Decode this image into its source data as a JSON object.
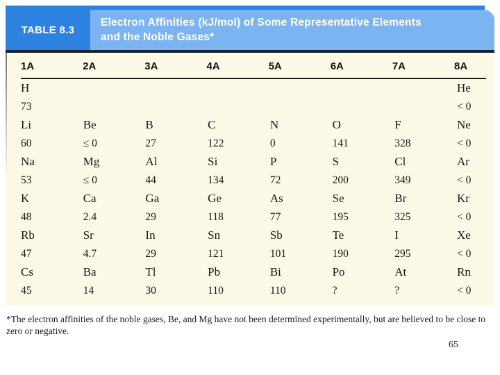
{
  "page": {
    "number": "65"
  },
  "header": {
    "label": "TABLE 8.3",
    "title_line1": "Electron Affinities (kJ/mol) of Some Representative Elements",
    "title_line2": "and the Noble Gases*"
  },
  "footnote": "*The electron affinities of the noble gases, Be, and Mg have not been determined experimentally, but are believed to be close to zero or negative.",
  "colors": {
    "accent_blue": "#2e82e0",
    "light_blue": "#7cb4f2",
    "dark_rule": "#16222c",
    "table_background": "#fcfae6"
  },
  "chart_data": {
    "type": "table",
    "title": "Electron Affinities (kJ/mol) of Some Representative Elements and the Noble Gases*",
    "columns": [
      "1A",
      "2A",
      "3A",
      "4A",
      "5A",
      "6A",
      "7A",
      "8A"
    ],
    "rows": [
      [
        {
          "symbol": "H",
          "value": "73"
        },
        null,
        null,
        null,
        null,
        null,
        null,
        {
          "symbol": "He",
          "value": "< 0"
        }
      ],
      [
        {
          "symbol": "Li",
          "value": "60"
        },
        {
          "symbol": "Be",
          "value": "≤ 0"
        },
        {
          "symbol": "B",
          "value": "27"
        },
        {
          "symbol": "C",
          "value": "122"
        },
        {
          "symbol": "N",
          "value": "0"
        },
        {
          "symbol": "O",
          "value": "141"
        },
        {
          "symbol": "F",
          "value": "328"
        },
        {
          "symbol": "Ne",
          "value": "< 0"
        }
      ],
      [
        {
          "symbol": "Na",
          "value": "53"
        },
        {
          "symbol": "Mg",
          "value": "≤ 0"
        },
        {
          "symbol": "Al",
          "value": "44"
        },
        {
          "symbol": "Si",
          "value": "134"
        },
        {
          "symbol": "P",
          "value": "72"
        },
        {
          "symbol": "S",
          "value": "200"
        },
        {
          "symbol": "Cl",
          "value": "349"
        },
        {
          "symbol": "Ar",
          "value": "< 0"
        }
      ],
      [
        {
          "symbol": "K",
          "value": "48"
        },
        {
          "symbol": "Ca",
          "value": "2.4"
        },
        {
          "symbol": "Ga",
          "value": "29"
        },
        {
          "symbol": "Ge",
          "value": "118"
        },
        {
          "symbol": "As",
          "value": "77"
        },
        {
          "symbol": "Se",
          "value": "195"
        },
        {
          "symbol": "Br",
          "value": "325"
        },
        {
          "symbol": "Kr",
          "value": "< 0"
        }
      ],
      [
        {
          "symbol": "Rb",
          "value": "47"
        },
        {
          "symbol": "Sr",
          "value": "4.7"
        },
        {
          "symbol": "In",
          "value": "29"
        },
        {
          "symbol": "Sn",
          "value": "121"
        },
        {
          "symbol": "Sb",
          "value": "101"
        },
        {
          "symbol": "Te",
          "value": "190"
        },
        {
          "symbol": "I",
          "value": "295"
        },
        {
          "symbol": "Xe",
          "value": "< 0"
        }
      ],
      [
        {
          "symbol": "Cs",
          "value": "45"
        },
        {
          "symbol": "Ba",
          "value": "14"
        },
        {
          "symbol": "Tl",
          "value": "30"
        },
        {
          "symbol": "Pb",
          "value": "110"
        },
        {
          "symbol": "Bi",
          "value": "110"
        },
        {
          "symbol": "Po",
          "value": "?"
        },
        {
          "symbol": "At",
          "value": "?"
        },
        {
          "symbol": "Rn",
          "value": "< 0"
        }
      ]
    ]
  }
}
